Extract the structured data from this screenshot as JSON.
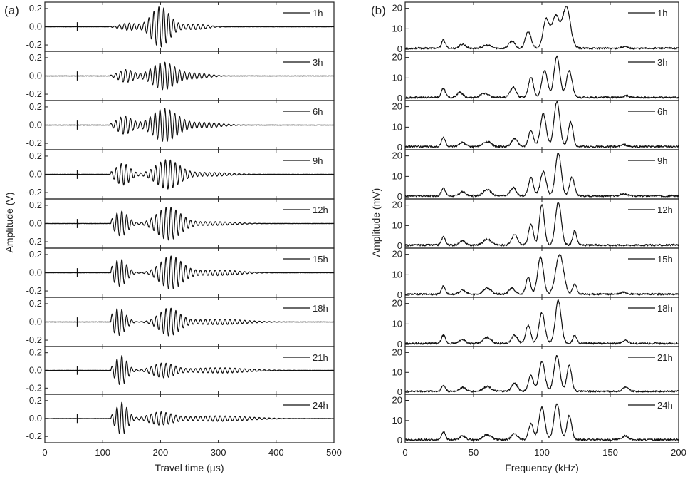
{
  "figure": {
    "panel_a_label": "(a)",
    "panel_b_label": "(b)"
  },
  "chart_data": [
    {
      "type": "line",
      "panel": "(a)",
      "xlabel": "Travel time (µs)",
      "ylabel": "Amplitude (V)",
      "xlim": [
        0,
        500
      ],
      "xticks": [
        "0",
        "100",
        "200",
        "300",
        "400",
        "500"
      ],
      "ylim": [
        -0.27,
        0.27
      ],
      "yticks": [
        "0.2",
        "0.0",
        "-0.2"
      ],
      "grid": false,
      "legend_position": "top-right",
      "series": [
        {
          "name": "1h",
          "onset_us": 110,
          "trigger_us": 56,
          "waves": [
            {
              "c": 145,
              "w": 20,
              "a": 0.04
            },
            {
              "c": 200,
              "w": 22,
              "a": 0.22
            },
            {
              "c": 258,
              "w": 30,
              "a": 0.03
            }
          ]
        },
        {
          "name": "3h",
          "onset_us": 112,
          "trigger_us": 56,
          "waves": [
            {
              "c": 140,
              "w": 18,
              "a": 0.07
            },
            {
              "c": 205,
              "w": 28,
              "a": 0.15
            },
            {
              "c": 262,
              "w": 30,
              "a": 0.03
            }
          ]
        },
        {
          "name": "6h",
          "onset_us": 112,
          "trigger_us": 56,
          "waves": [
            {
              "c": 138,
              "w": 18,
              "a": 0.1
            },
            {
              "c": 207,
              "w": 30,
              "a": 0.18
            },
            {
              "c": 275,
              "w": 40,
              "a": 0.03
            }
          ]
        },
        {
          "name": "9h",
          "onset_us": 113,
          "trigger_us": 56,
          "waves": [
            {
              "c": 135,
              "w": 17,
              "a": 0.12
            },
            {
              "c": 212,
              "w": 28,
              "a": 0.16
            },
            {
              "c": 285,
              "w": 50,
              "a": 0.02
            }
          ]
        },
        {
          "name": "12h",
          "onset_us": 114,
          "trigger_us": 56,
          "waves": [
            {
              "c": 132,
              "w": 16,
              "a": 0.14
            },
            {
              "c": 214,
              "w": 28,
              "a": 0.18
            },
            {
              "c": 290,
              "w": 50,
              "a": 0.02
            }
          ]
        },
        {
          "name": "15h",
          "onset_us": 114,
          "trigger_us": 56,
          "waves": [
            {
              "c": 130,
              "w": 16,
              "a": 0.15
            },
            {
              "c": 218,
              "w": 26,
              "a": 0.18
            },
            {
              "c": 295,
              "w": 55,
              "a": 0.03
            }
          ]
        },
        {
          "name": "18h",
          "onset_us": 114,
          "trigger_us": 56,
          "waves": [
            {
              "c": 128,
              "w": 16,
              "a": 0.15
            },
            {
              "c": 215,
              "w": 24,
              "a": 0.15
            },
            {
              "c": 300,
              "w": 60,
              "a": 0.03
            }
          ]
        },
        {
          "name": "21h",
          "onset_us": 114,
          "trigger_us": 56,
          "waves": [
            {
              "c": 132,
              "w": 14,
              "a": 0.17
            },
            {
              "c": 205,
              "w": 26,
              "a": 0.08
            },
            {
              "c": 300,
              "w": 65,
              "a": 0.03
            }
          ]
        },
        {
          "name": "24h",
          "onset_us": 114,
          "trigger_us": 56,
          "waves": [
            {
              "c": 133,
              "w": 14,
              "a": 0.18
            },
            {
              "c": 200,
              "w": 28,
              "a": 0.07
            },
            {
              "c": 300,
              "w": 70,
              "a": 0.03
            }
          ]
        }
      ]
    },
    {
      "type": "line",
      "panel": "(b)",
      "xlabel": "Frequency (kHz)",
      "ylabel": "Amplitude (mV)",
      "xlim": [
        0,
        200
      ],
      "xticks": [
        "0",
        "50",
        "100",
        "150",
        "200"
      ],
      "ylim": [
        -1,
        23
      ],
      "yticks": [
        "20",
        "10",
        "0"
      ],
      "grid": false,
      "legend_position": "top-right",
      "series": [
        {
          "name": "1h",
          "peaks": [
            [
              28,
              4,
              2
            ],
            [
              42,
              2,
              3
            ],
            [
              60,
              1.5,
              4
            ],
            [
              78,
              3.5,
              3
            ],
            [
              90,
              8,
              3
            ],
            [
              103,
              14,
              3
            ],
            [
              110,
              16,
              4
            ],
            [
              118,
              20,
              4
            ],
            [
              160,
              0.8,
              3
            ]
          ]
        },
        {
          "name": "3h",
          "peaks": [
            [
              28,
              4.5,
              2
            ],
            [
              40,
              2.5,
              3
            ],
            [
              58,
              2,
              4
            ],
            [
              79,
              5,
              3
            ],
            [
              92,
              10,
              2.5
            ],
            [
              102,
              13,
              3
            ],
            [
              111,
              20,
              3
            ],
            [
              120,
              13,
              3
            ],
            [
              162,
              0.8,
              3
            ]
          ]
        },
        {
          "name": "6h",
          "peaks": [
            [
              28,
              4.5,
              2
            ],
            [
              42,
              2,
              3
            ],
            [
              60,
              2.5,
              4
            ],
            [
              80,
              4,
              3
            ],
            [
              92,
              8,
              2.5
            ],
            [
              101,
              16,
              3
            ],
            [
              111,
              22,
              3
            ],
            [
              121,
              12,
              2.5
            ],
            [
              160,
              1,
              3
            ]
          ]
        },
        {
          "name": "9h",
          "peaks": [
            [
              28,
              4,
              2
            ],
            [
              42,
              2,
              3
            ],
            [
              60,
              3,
              4
            ],
            [
              79,
              4,
              3
            ],
            [
              92,
              9,
              2.5
            ],
            [
              101,
              12,
              3
            ],
            [
              112,
              21,
              3
            ],
            [
              122,
              9,
              2.5
            ],
            [
              160,
              1,
              3
            ]
          ]
        },
        {
          "name": "12h",
          "peaks": [
            [
              28,
              4,
              2
            ],
            [
              42,
              2,
              3
            ],
            [
              60,
              3,
              4
            ],
            [
              80,
              5,
              3
            ],
            [
              92,
              10,
              2.5
            ],
            [
              100,
              20,
              2.5
            ],
            [
              112,
              21,
              3
            ],
            [
              124,
              7,
              2
            ]
          ]
        },
        {
          "name": "15h",
          "peaks": [
            [
              28,
              4,
              2
            ],
            [
              42,
              2,
              3
            ],
            [
              60,
              3,
              4
            ],
            [
              78,
              3,
              3
            ],
            [
              90,
              8,
              2.5
            ],
            [
              99,
              18,
              3
            ],
            [
              113,
              19.5,
              4
            ],
            [
              124,
              5,
              2
            ],
            [
              160,
              1,
              3
            ]
          ]
        },
        {
          "name": "18h",
          "peaks": [
            [
              28,
              4,
              2
            ],
            [
              42,
              2,
              3
            ],
            [
              60,
              3,
              4
            ],
            [
              80,
              4,
              3
            ],
            [
              90,
              9,
              2.5
            ],
            [
              100,
              15,
              3
            ],
            [
              112,
              21,
              3
            ],
            [
              124,
              4,
              2
            ],
            [
              161,
              1.5,
              3
            ]
          ]
        },
        {
          "name": "21h",
          "peaks": [
            [
              28,
              3,
              2
            ],
            [
              42,
              2,
              3
            ],
            [
              60,
              2.5,
              4
            ],
            [
              80,
              4,
              3
            ],
            [
              92,
              8,
              2.5
            ],
            [
              100,
              15,
              3
            ],
            [
              111,
              18,
              3
            ],
            [
              120,
              13,
              2.5
            ],
            [
              161,
              2,
              3
            ]
          ]
        },
        {
          "name": "24h",
          "peaks": [
            [
              28,
              4,
              2
            ],
            [
              42,
              2,
              3
            ],
            [
              60,
              2.5,
              4
            ],
            [
              80,
              3,
              3
            ],
            [
              92,
              8,
              2.5
            ],
            [
              100,
              16,
              3
            ],
            [
              111,
              18,
              3
            ],
            [
              120,
              12,
              2.5
            ],
            [
              161,
              2,
              3
            ]
          ]
        }
      ]
    }
  ]
}
